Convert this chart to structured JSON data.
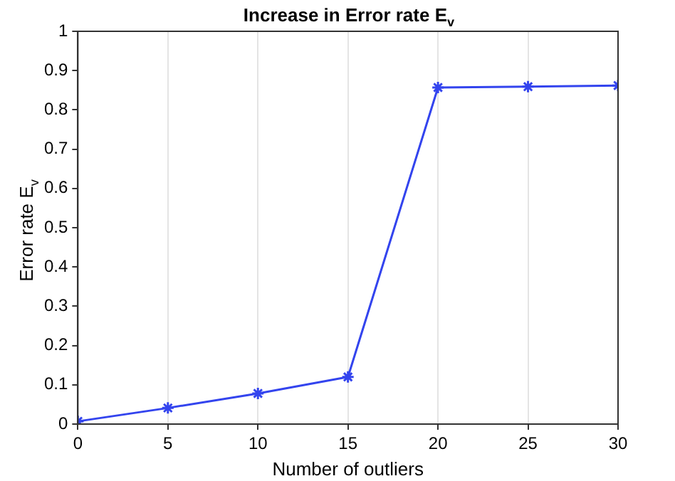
{
  "chart_data": {
    "type": "line",
    "title": "Increase in Error rate E$_{v}$",
    "xlabel": "Number of outliers",
    "ylabel": "Error rate E$_{v}$",
    "x": [
      0,
      5,
      10,
      15,
      20,
      25,
      30
    ],
    "series": [
      {
        "color": "#3344ee",
        "values": [
          0.007,
          0.041,
          0.078,
          0.12,
          0.857,
          0.859,
          0.862
        ]
      }
    ],
    "xlim": [
      0,
      30
    ],
    "xticks": [
      0,
      5,
      10,
      15,
      20,
      25,
      30
    ],
    "ylim": [
      0,
      1
    ],
    "yticks": [
      0,
      0.1,
      0.2,
      0.3,
      0.4,
      0.5,
      0.6,
      0.7,
      0.8,
      0.9,
      1
    ],
    "grid": "x",
    "marker": "cross",
    "line_style": "solid",
    "legend": false
  }
}
